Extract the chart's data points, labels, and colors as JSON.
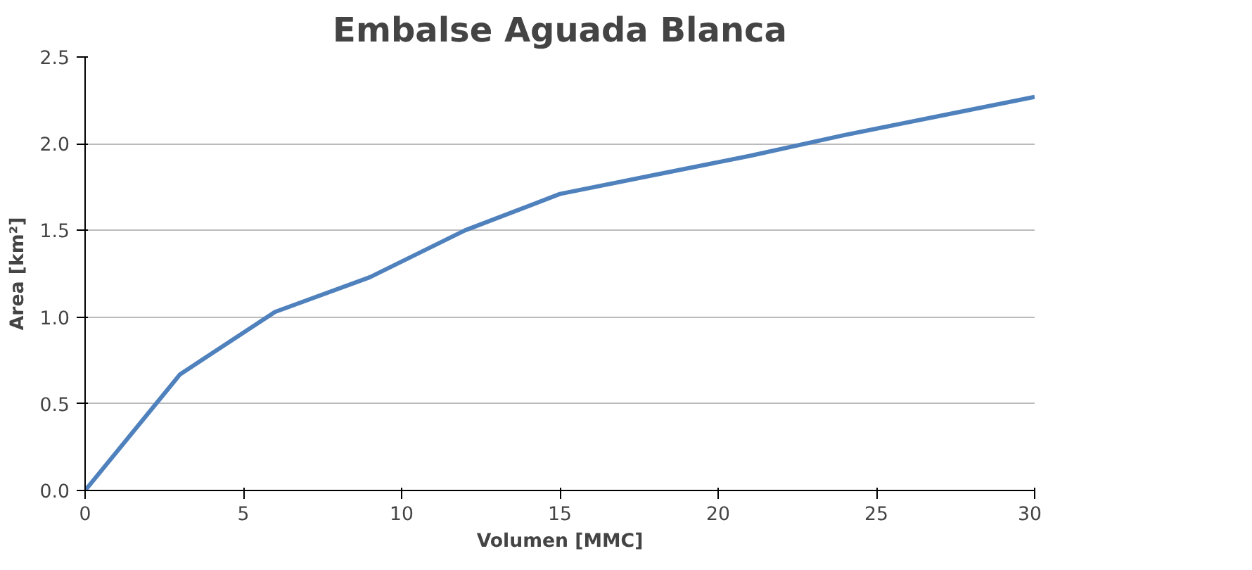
{
  "chart_data": {
    "type": "line",
    "title": "Embalse Aguada Blanca",
    "xlabel": "Volumen [MMC]",
    "ylabel": "Area [km²]",
    "x": [
      0,
      3,
      6,
      9,
      12,
      15,
      18,
      21,
      24,
      27,
      30
    ],
    "series": [
      {
        "color": "#4f81bd",
        "values": [
          0,
          0.67,
          1.03,
          1.23,
          1.5,
          1.71,
          1.82,
          1.93,
          2.05,
          2.16,
          2.27
        ]
      }
    ],
    "xlim": [
      0,
      30
    ],
    "ylim": [
      0,
      2.5
    ],
    "xticks": [
      0,
      5,
      10,
      15,
      20,
      25,
      30
    ],
    "yticks": [
      {
        "value": 0,
        "label": "0.0"
      },
      0.5,
      {
        "value": 1,
        "label": "1.0"
      },
      1.5,
      {
        "value": 2,
        "label": "2.0"
      },
      2.5
    ],
    "grid": "y"
  }
}
